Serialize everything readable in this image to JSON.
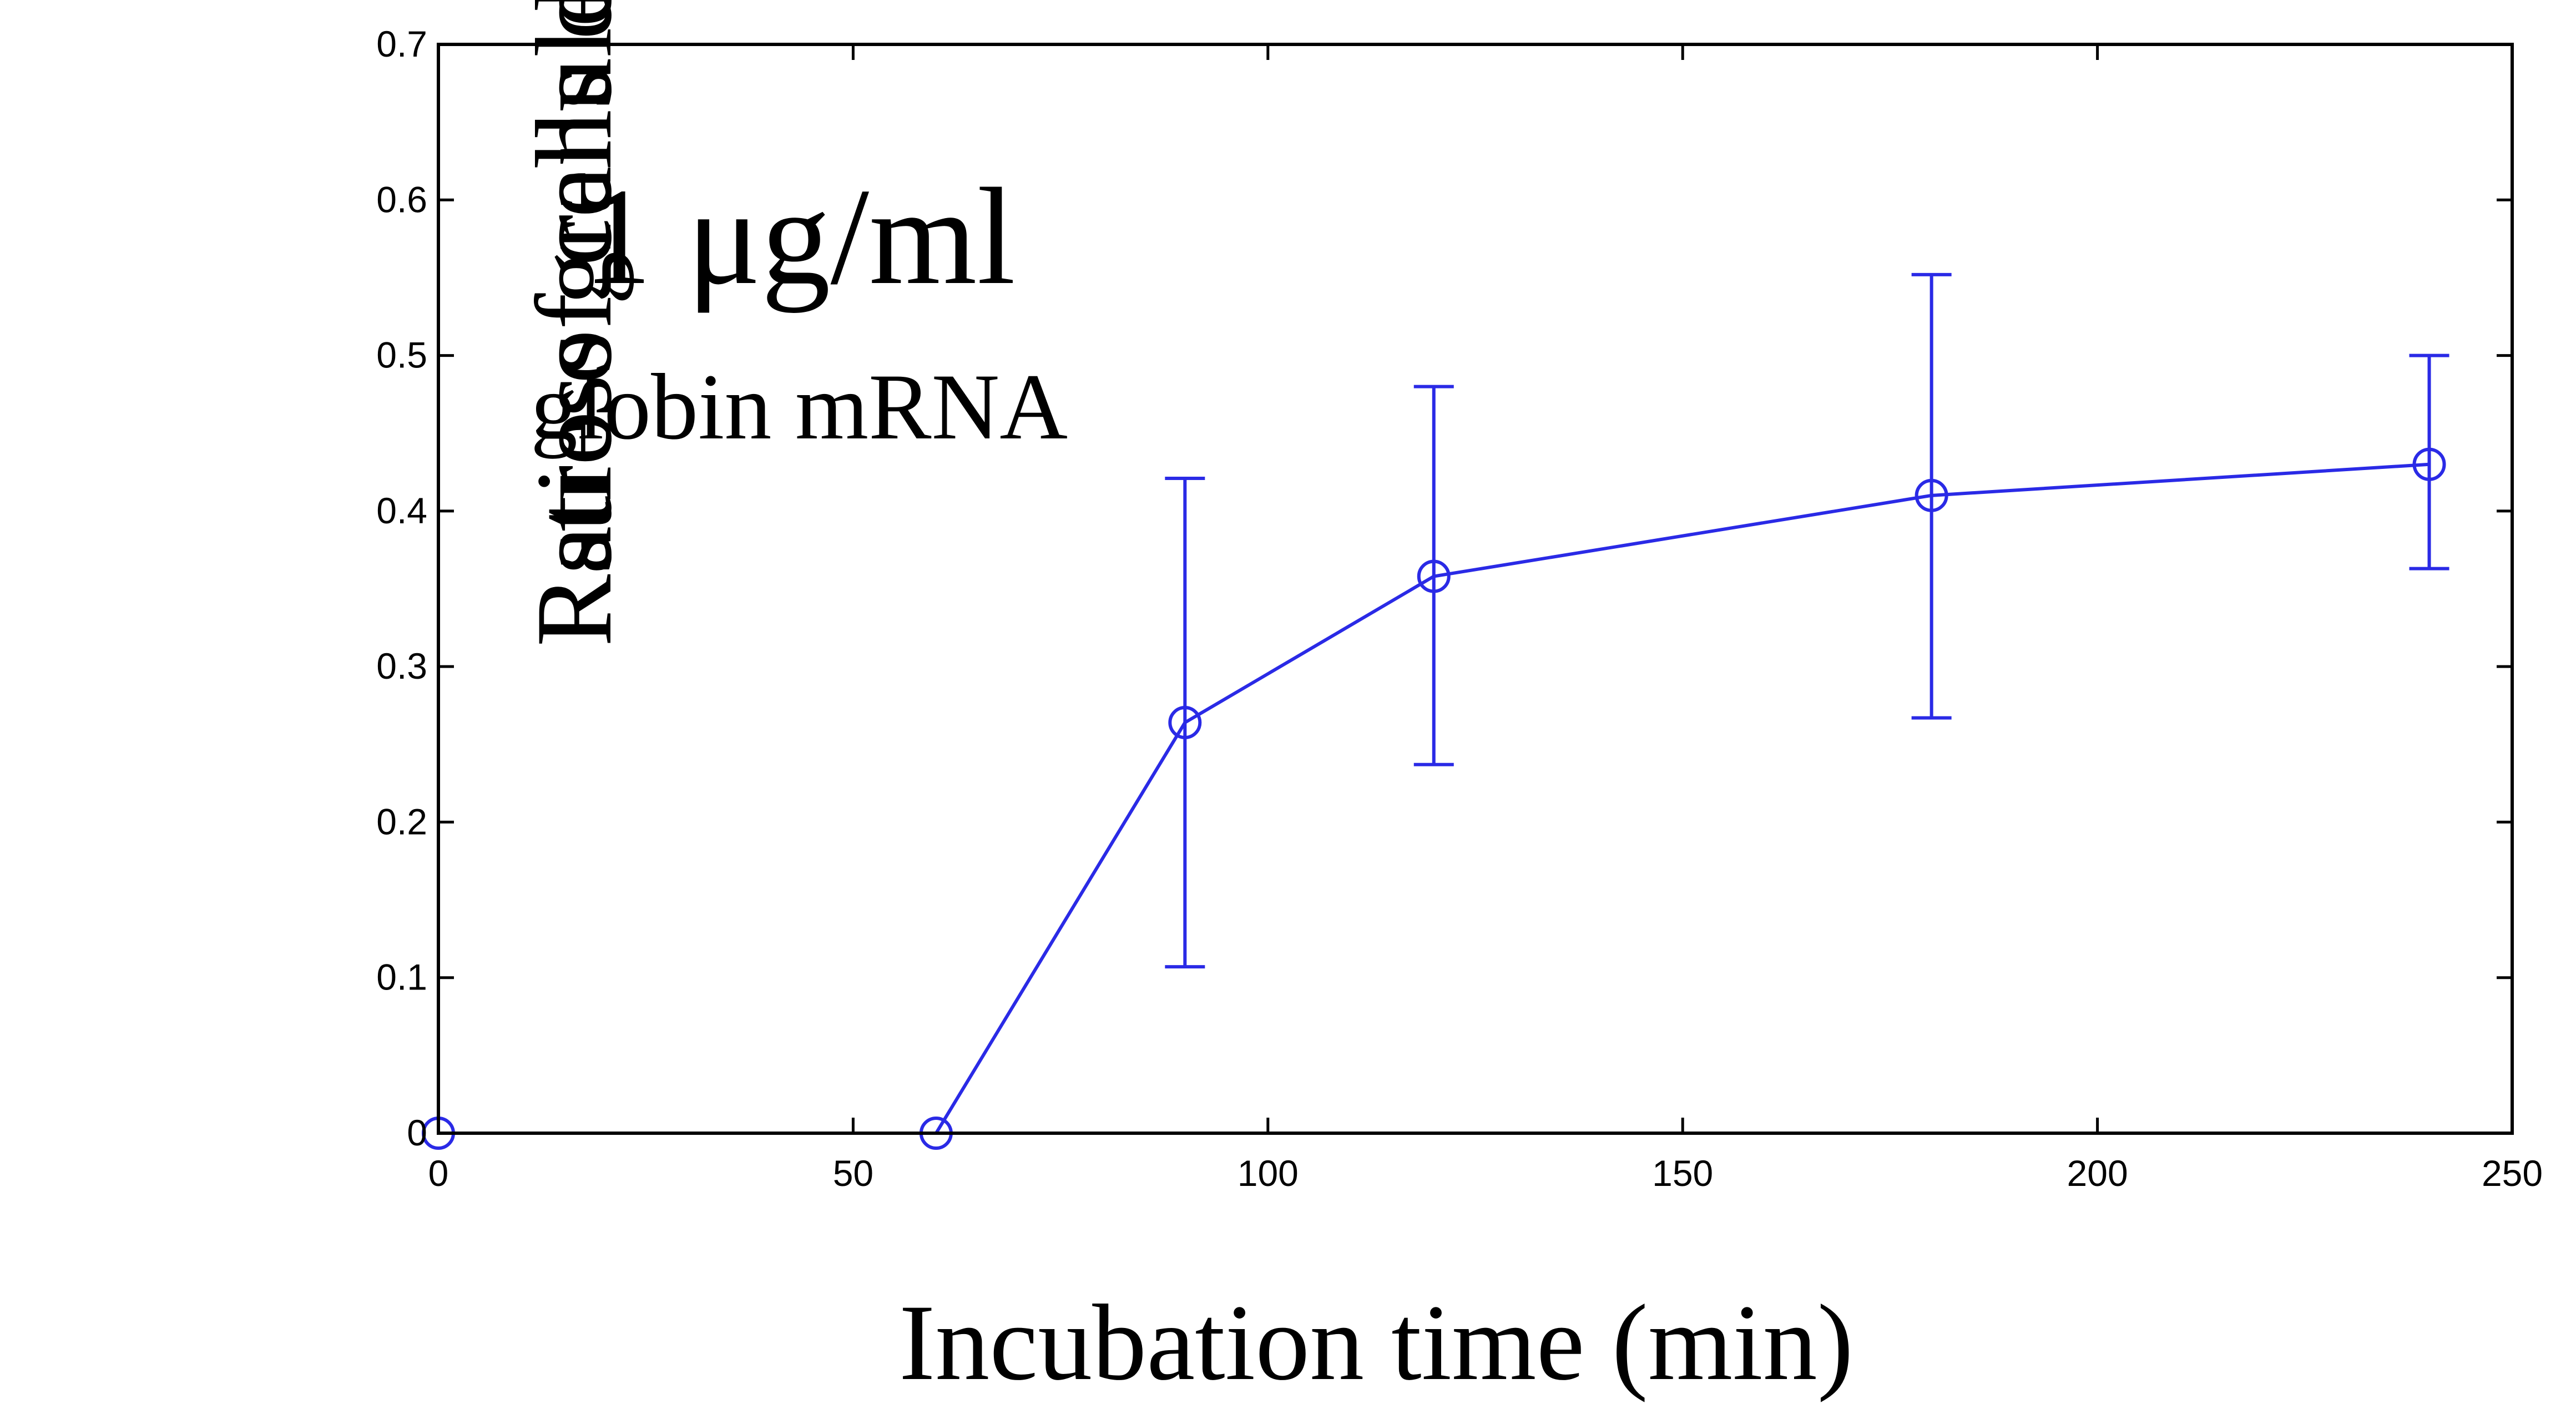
{
  "chart_data": {
    "type": "line",
    "title": "",
    "xlabel": "Incubation time (min)",
    "ylabel_lines": [
      "Ratio of cells displaying",
      "stress granules"
    ],
    "annotations": [
      "1 μg/ml",
      "globin mRNA"
    ],
    "xlim": [
      0,
      250
    ],
    "ylim": [
      0,
      0.7
    ],
    "x_ticks": [
      0,
      50,
      100,
      150,
      200,
      250
    ],
    "x_tick_labels": [
      "0",
      "50",
      "100",
      "150",
      "200",
      "250"
    ],
    "y_ticks": [
      0,
      0.1,
      0.2,
      0.3,
      0.4,
      0.5,
      0.6,
      0.7
    ],
    "y_tick_labels": [
      "0",
      "0.1",
      "0.2",
      "0.3",
      "0.4",
      "0.5",
      "0.6",
      "0.7"
    ],
    "grid": false,
    "series": [
      {
        "color": "#2a2ae6",
        "marker": "circle",
        "points": [
          {
            "x": 0,
            "y": 0,
            "err_low": 0,
            "err_high": 0
          },
          {
            "x": 60,
            "y": 0,
            "err_low": 0,
            "err_high": 0
          },
          {
            "x": 90,
            "y": 0.264,
            "err_low": 0.107,
            "err_high": 0.421
          },
          {
            "x": 120,
            "y": 0.358,
            "err_low": 0.237,
            "err_high": 0.48
          },
          {
            "x": 180,
            "y": 0.41,
            "err_low": 0.267,
            "err_high": 0.552
          },
          {
            "x": 240,
            "y": 0.43,
            "err_low": 0.363,
            "err_high": 0.5
          }
        ]
      }
    ]
  }
}
